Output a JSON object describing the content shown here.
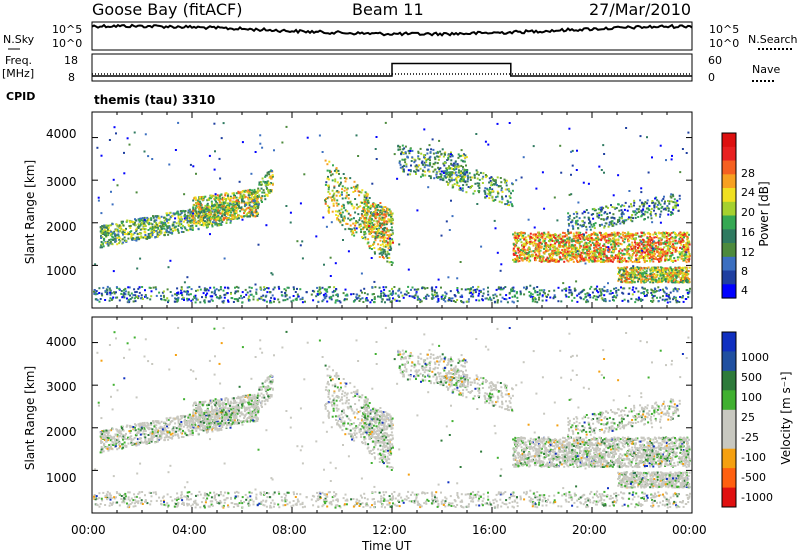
{
  "header": {
    "station": "Goose Bay (fitACF)",
    "beam": "Beam 11",
    "date": "27/Mar/2010"
  },
  "strip_labels": {
    "nsky": "N.Sky",
    "nsearch": "N.Search",
    "freq": "Freq.",
    "mhz": "[MHz]",
    "nave": "Nave",
    "cpid_label": "CPID",
    "cpid_value": "themis (tau) 3310"
  },
  "chart_data": [
    {
      "type": "line",
      "name": "noise",
      "left_axis": [
        "10^5",
        "10^0"
      ],
      "right_axis": [
        "10^5",
        "10^0"
      ],
      "series": [
        {
          "name": "N.Sky",
          "style": "solid"
        },
        {
          "name": "N.Search",
          "style": "dotted"
        }
      ]
    },
    {
      "type": "line",
      "name": "frequency-nave",
      "left_ticks": [
        18,
        8
      ],
      "right_ticks": [
        60,
        0
      ],
      "series": [
        {
          "name": "Freq. [MHz]",
          "style": "solid",
          "x": [
            "00:00",
            "12:00",
            "12:00",
            "16:45",
            "16:45",
            "24:00"
          ],
          "values": [
            10,
            10,
            15,
            15,
            10,
            10
          ]
        },
        {
          "name": "Nave",
          "style": "dotted",
          "x": [
            "00:00",
            "24:00"
          ],
          "values": [
            12,
            12
          ]
        }
      ]
    },
    {
      "type": "heatmap",
      "name": "power",
      "ylabel": "Slant Range [km]",
      "yticks": [
        1000,
        2000,
        3000,
        4000
      ],
      "colorbar_label": "Power [dB]",
      "colorbar_ticks": [
        "28",
        "24",
        "20",
        "16",
        "12",
        "8",
        "4"
      ],
      "colorscale": [
        "#0000ff",
        "#1f3fa0",
        "#3b6fc0",
        "#4d8a3c",
        "#2f7a60",
        "#35a853",
        "#a5d12f",
        "#f0e020",
        "#f7a020",
        "#f56020",
        "#e82020",
        "#dd1010"
      ]
    },
    {
      "type": "heatmap",
      "name": "velocity",
      "ylabel": "Slant Range [km]",
      "yticks": [
        1000,
        2000,
        3000,
        4000
      ],
      "colorbar_label": "Velocity [m s⁻¹]",
      "colorbar_ticks": [
        "1000",
        "500",
        "100",
        "25",
        "-25",
        "-100",
        "-500",
        "-1000"
      ],
      "colorscale": [
        "#1030c0",
        "#2050a0",
        "#2d7a3a",
        "#40b030",
        "#c8c8c0",
        "#c8c8c0",
        "#f5a010",
        "#ff6010",
        "#e01010"
      ]
    }
  ],
  "xaxis": {
    "ticks": [
      "00:00",
      "04:00",
      "08:00",
      "12:00",
      "16:00",
      "20:00",
      "00:00"
    ],
    "label": "Time UT"
  }
}
